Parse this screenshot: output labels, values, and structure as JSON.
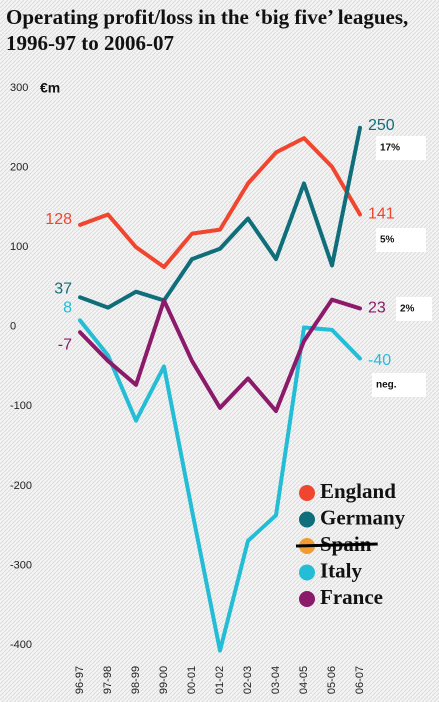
{
  "chart_data": {
    "type": "line",
    "title": "Operating profit/loss in the ‘big five’ leagues, 1996-97 to 2006-07",
    "y_label": "€m",
    "categories": [
      "96-97",
      "97-98",
      "98-99",
      "99-00",
      "00-01",
      "01-02",
      "02-03",
      "03-04",
      "04-05",
      "05-06",
      "06-07"
    ],
    "series": [
      {
        "name": "England",
        "color": "#f0462f",
        "values": [
          128,
          141,
          100,
          75,
          117,
          122,
          180,
          219,
          237,
          201,
          141
        ]
      },
      {
        "name": "Germany",
        "color": "#0f6e7a",
        "values": [
          37,
          24,
          44,
          33,
          85,
          98,
          136,
          85,
          180,
          77,
          250
        ]
      },
      {
        "name": "Spain",
        "color": "#f39a30",
        "struck": true,
        "values": [
          null,
          null,
          null,
          null,
          null,
          null,
          null,
          null,
          null,
          null,
          null
        ]
      },
      {
        "name": "Italy",
        "color": "#24bdd6",
        "values": [
          8,
          -36,
          -118,
          -50,
          -231,
          -407,
          -269,
          -237,
          -1,
          -4,
          -40
        ]
      },
      {
        "name": "France",
        "color": "#8b1a6b",
        "values": [
          -7,
          -43,
          -73,
          33,
          -43,
          -102,
          -65,
          -106,
          -18,
          34,
          23
        ]
      }
    ],
    "annotations": [
      "17%",
      "5%",
      "2%",
      "neg."
    ],
    "ylim": [
      -420,
      300
    ],
    "yticks": [
      -400,
      -300,
      -200,
      -100,
      0,
      100,
      200,
      300
    ],
    "grid": false
  }
}
